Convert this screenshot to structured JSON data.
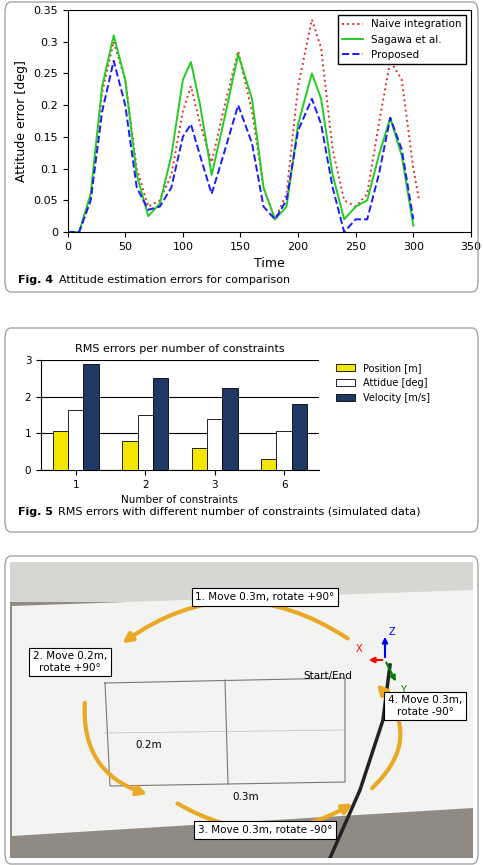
{
  "chart_data": [
    {
      "type": "line",
      "x_label": "Time",
      "y_label": "Attitude error [deg]",
      "x": [
        0,
        10,
        20,
        30,
        40,
        50,
        60,
        70,
        80,
        90,
        100,
        107,
        115,
        125,
        135,
        148,
        160,
        170,
        180,
        190,
        200,
        212,
        220,
        230,
        240,
        250,
        260,
        270,
        280,
        290,
        300,
        305
      ],
      "series": [
        {
          "name": "Naive integration",
          "color": "#e03030",
          "line_style": "dotted",
          "values": [
            0,
            0,
            0.05,
            0.22,
            0.3,
            0.24,
            0.1,
            0.04,
            0.05,
            0.09,
            0.19,
            0.23,
            0.17,
            0.11,
            0.19,
            0.285,
            0.19,
            0.07,
            0.02,
            0.06,
            0.23,
            0.335,
            0.29,
            0.13,
            0.05,
            0.04,
            0.06,
            0.17,
            0.27,
            0.24,
            0.1,
            0.05
          ]
        },
        {
          "name": "Sagawa et al.",
          "color": "#22cc22",
          "line_style": "solid",
          "values": [
            0,
            0,
            0.06,
            0.23,
            0.31,
            0.24,
            0.09,
            0.025,
            0.045,
            0.12,
            0.24,
            0.268,
            0.2,
            0.09,
            0.17,
            0.28,
            0.21,
            0.07,
            0.02,
            0.04,
            0.17,
            0.25,
            0.21,
            0.09,
            0.02,
            0.04,
            0.05,
            0.12,
            0.18,
            0.12,
            0.01,
            null
          ]
        },
        {
          "name": "Proposed",
          "color": "#1a1aff",
          "line_style": "dashed",
          "values": [
            0,
            0,
            0.05,
            0.19,
            0.27,
            0.2,
            0.07,
            0.035,
            0.04,
            0.07,
            0.15,
            0.17,
            0.12,
            0.06,
            0.12,
            0.2,
            0.14,
            0.04,
            0.02,
            0.05,
            0.16,
            0.21,
            0.17,
            0.07,
            0.0,
            0.02,
            0.02,
            0.09,
            0.18,
            0.13,
            0.02,
            null
          ]
        }
      ],
      "xlim": [
        0,
        350
      ],
      "xticks": [
        0,
        50,
        100,
        150,
        200,
        250,
        300,
        350
      ],
      "ylim": [
        0,
        0.35
      ],
      "yticks": [
        0,
        0.05,
        0.1,
        0.15,
        0.2,
        0.25,
        0.3,
        0.35
      ],
      "legend": "upper right",
      "caption": {
        "label": "Fig. 4",
        "text": "Attitude estimation errors for comparison"
      }
    },
    {
      "type": "bar",
      "title": "RMS errors per number of constraints",
      "x_label": "Number of constraints",
      "categories": [
        "1",
        "2",
        "3",
        "6"
      ],
      "series": [
        {
          "name": "Position [m]",
          "color": "#f5e600",
          "values": [
            1.05,
            0.8,
            0.6,
            0.3
          ]
        },
        {
          "name": "Attidue [deg]",
          "color": "#ffffff",
          "values": [
            1.65,
            1.5,
            1.4,
            1.05
          ]
        },
        {
          "name": "Velocity [m/s]",
          "color": "#1f3864",
          "values": [
            2.9,
            2.5,
            2.25,
            1.8
          ]
        }
      ],
      "ylim": [
        0,
        3
      ],
      "yticks": [
        0,
        1,
        2,
        3
      ],
      "grid": true,
      "legend": "upper left",
      "caption": {
        "label": "Fig. 5",
        "text": "RMS errors with different number of constraints (simulated data)"
      }
    }
  ],
  "diagram": {
    "steps": [
      "1. Move 0.3m, rotate +90°",
      "2. Move 0.2m,\nrotate +90°",
      "3. Move 0.3m, rotate -90°",
      "4. Move 0.3m,\nrotate -90°"
    ],
    "dimensions": [
      "0.2m",
      "0.3m"
    ],
    "start_label": "Start/End",
    "axis_labels": {
      "x": "X",
      "y": "Y",
      "z": "Z"
    }
  }
}
